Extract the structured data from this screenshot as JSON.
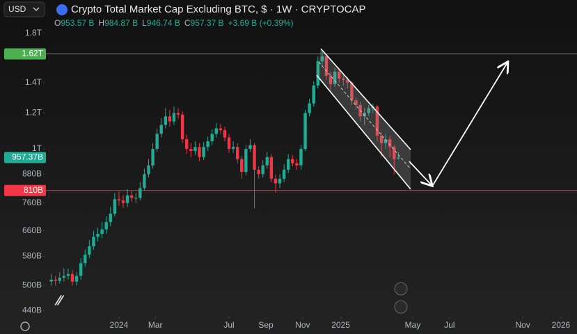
{
  "header": {
    "currency": "USD",
    "title": "Crypto Total Market Cap Excluding BTC, $ · 1W · CRYPTOCAP",
    "ohlc": [
      {
        "label": "O",
        "value": "953.57 B"
      },
      {
        "label": "H",
        "value": "984.87 B"
      },
      {
        "label": "L",
        "value": "946.74 B"
      },
      {
        "label": "C",
        "value": "957.37 B"
      }
    ],
    "change": "+3.69 B (+0.39%)"
  },
  "chart_data": {
    "type": "candlestick",
    "log_scale": true,
    "up_color": "#22ab94",
    "down_color": "#f23645",
    "x": [
      -16,
      -15,
      -14,
      -13,
      -12,
      -11,
      -10,
      -9,
      -8,
      -7,
      -6,
      -5,
      -4,
      -3,
      -2,
      -1,
      0,
      1,
      2,
      3,
      4,
      5,
      6,
      7,
      8,
      9,
      10,
      11,
      12,
      13,
      14,
      15,
      16,
      17,
      18,
      19,
      20,
      21,
      22,
      23,
      24,
      25,
      26,
      27,
      28,
      29,
      30,
      31,
      32,
      33,
      34,
      35,
      36,
      37,
      38,
      39,
      40,
      41,
      42,
      43,
      44,
      45,
      46,
      47,
      48,
      49,
      50,
      51,
      52,
      53,
      54,
      55,
      56,
      57,
      58,
      59,
      60,
      61,
      62,
      63,
      64,
      65,
      66
    ],
    "open": [
      510,
      515,
      512,
      520,
      525,
      530,
      510,
      525,
      560,
      585,
      610,
      640,
      650,
      665,
      690,
      720,
      775,
      770,
      760,
      790,
      780,
      780,
      820,
      880,
      920,
      1000,
      1080,
      1130,
      1180,
      1150,
      1200,
      1190,
      1050,
      1000,
      990,
      1010,
      960,
      1010,
      1040,
      1080,
      1110,
      1100,
      1060,
      1000,
      1010,
      950,
      890,
      1000,
      1020,
      900,
      880,
      920,
      960,
      860,
      840,
      860,
      900,
      950,
      930,
      920,
      1000,
      1200,
      1260,
      1380,
      1560,
      1600,
      1450,
      1390,
      1480,
      1430,
      1420,
      1400,
      1280,
      1250,
      1180,
      1200,
      1230,
      1240,
      1070,
      1030,
      1050,
      1010,
      953.57
    ],
    "high": [
      530,
      525,
      535,
      545,
      545,
      540,
      535,
      575,
      600,
      630,
      660,
      670,
      690,
      710,
      745,
      800,
      805,
      790,
      815,
      810,
      800,
      845,
      905,
      950,
      1030,
      1110,
      1170,
      1230,
      1220,
      1240,
      1230,
      1210,
      1075,
      1030,
      1040,
      1030,
      1035,
      1065,
      1105,
      1140,
      1135,
      1120,
      1080,
      1040,
      1030,
      965,
      1020,
      1050,
      1030,
      915,
      945,
      985,
      975,
      880,
      880,
      925,
      975,
      970,
      950,
      1020,
      1220,
      1290,
      1410,
      1600,
      1650,
      1620,
      1480,
      1510,
      1500,
      1470,
      1440,
      1410,
      1300,
      1270,
      1230,
      1250,
      1260,
      1250,
      1090,
      1080,
      1070,
      1020,
      984.87
    ],
    "low": [
      500,
      500,
      505,
      510,
      515,
      500,
      500,
      515,
      550,
      575,
      600,
      625,
      635,
      650,
      675,
      710,
      750,
      740,
      745,
      765,
      760,
      770,
      810,
      865,
      905,
      985,
      1060,
      1110,
      1120,
      1130,
      1165,
      1030,
      975,
      960,
      970,
      940,
      945,
      990,
      1020,
      1060,
      1080,
      1040,
      980,
      980,
      930,
      860,
      875,
      985,
      740,
      860,
      865,
      905,
      845,
      800,
      820,
      845,
      885,
      915,
      900,
      900,
      990,
      1180,
      1240,
      1360,
      1520,
      1420,
      1350,
      1370,
      1400,
      1380,
      1360,
      1250,
      1220,
      1150,
      1130,
      1180,
      1200,
      1040,
      960,
      1000,
      960,
      880,
      946.74
    ],
    "close": [
      515,
      512,
      520,
      525,
      530,
      510,
      525,
      560,
      585,
      610,
      640,
      650,
      665,
      690,
      720,
      775,
      770,
      760,
      790,
      780,
      780,
      820,
      880,
      920,
      1000,
      1080,
      1130,
      1180,
      1150,
      1200,
      1190,
      1050,
      1000,
      990,
      1010,
      960,
      1010,
      1040,
      1080,
      1110,
      1100,
      1060,
      1000,
      1010,
      950,
      890,
      1000,
      1020,
      900,
      880,
      920,
      960,
      860,
      840,
      860,
      900,
      950,
      930,
      920,
      1000,
      1200,
      1260,
      1380,
      1560,
      1600,
      1450,
      1390,
      1480,
      1430,
      1420,
      1400,
      1280,
      1250,
      1180,
      1200,
      1230,
      1240,
      1070,
      1030,
      1050,
      1010,
      950,
      957.37
    ],
    "xlim": [
      -28.1,
      108.2
    ],
    "xticks": [
      {
        "value": 0,
        "label": "2024"
      },
      {
        "value": 8.6,
        "label": "Mar"
      },
      {
        "value": 26,
        "label": "Jul"
      },
      {
        "value": 34.7,
        "label": "Sep"
      },
      {
        "value": 43.4,
        "label": "Nov"
      },
      {
        "value": 52.4,
        "label": "2025"
      },
      {
        "value": 69.4,
        "label": "May"
      },
      {
        "value": 78.1,
        "label": "Jul"
      },
      {
        "value": 95.4,
        "label": "Nov"
      },
      {
        "value": 104.4,
        "label": "2026"
      }
    ],
    "ylim": [
      427,
      2130
    ],
    "yticks": [
      {
        "value": 1800,
        "label": "1.8T"
      },
      {
        "value": 1400,
        "label": "1.4T"
      },
      {
        "value": 1200,
        "label": "1.2T"
      },
      {
        "value": 1000,
        "label": "1T"
      },
      {
        "value": 880,
        "label": "880B"
      },
      {
        "value": 760,
        "label": "760B"
      },
      {
        "value": 660,
        "label": "660B"
      },
      {
        "value": 580,
        "label": "580B"
      },
      {
        "value": 500,
        "label": "500B"
      },
      {
        "value": 440,
        "label": "440B"
      }
    ],
    "price_lines": [
      {
        "value": 1620,
        "label": "1.62T",
        "color": "#4caf50",
        "line": true
      },
      {
        "value": 957.37,
        "label": "957.37B",
        "color": "#22ab94",
        "line": false
      },
      {
        "value": 810,
        "label": "810B",
        "color": "#f23645",
        "line": true
      }
    ]
  }
}
